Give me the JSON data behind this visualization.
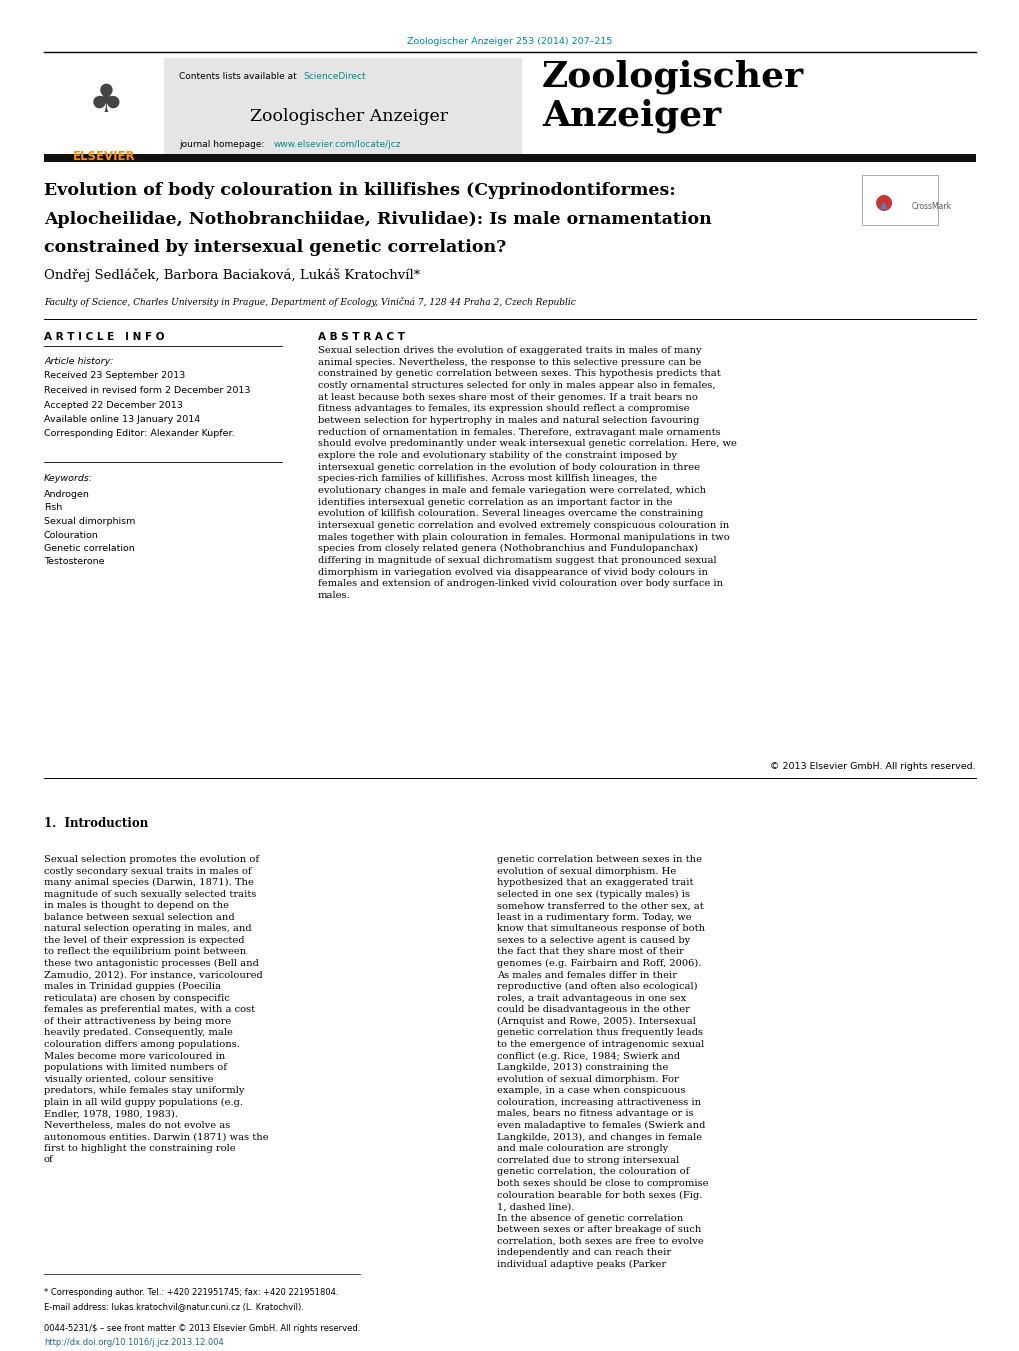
{
  "page_width": 10.2,
  "page_height": 13.51,
  "background_color": "#ffffff",
  "journal_ref_color": "#008B8B",
  "journal_ref": "Zoologischer Anzeiger 253 (2014) 207–215",
  "header_bg": "#E5E5E5",
  "header_journal_name": "Zoologischer Anzeiger",
  "header_journal_large": "Zoologischer\nAnzeiger",
  "header_contents_pre": "Contents lists available at ",
  "header_sciencedirect": "ScienceDirect",
  "header_homepage_pre": "journal homepage: ",
  "header_homepage_url": "www.elsevier.com/locate/jcz",
  "elsevier_color": "#FF8C00",
  "teal_color": "#008B8B",
  "dark_bar_color": "#111111",
  "article_title_line1": "Evolution of body colouration in killifishes (Cyprinodontiformes:",
  "article_title_line2": "Aplocheilidae, Nothobranchiidae, Rivulidae): Is male ornamentation",
  "article_title_line3": "constrained by intersexual genetic correlation?",
  "authors": "Ondřej Sedláček, Barbora Baciaková, Lukáš Kratochvíl*",
  "affiliation": "Faculty of Science, Charles University in Prague, Department of Ecology, Viničná 7, 128 44 Praha 2, Czech Republic",
  "article_history_label": "Article history:",
  "history_lines": [
    "Received 23 September 2013",
    "Received in revised form 2 December 2013",
    "Accepted 22 December 2013",
    "Available online 13 January 2014",
    "Corresponding Editor: Alexander Kupfer."
  ],
  "keywords_label": "Keywords:",
  "keywords": [
    "Androgen",
    "Fish",
    "Sexual dimorphism",
    "Colouration",
    "Genetic correlation",
    "Testosterone"
  ],
  "abstract_text": "Sexual selection drives the evolution of exaggerated traits in males of many animal species. Nevertheless, the response to this selective pressure can be constrained by genetic correlation between sexes. This hypothesis predicts that costly ornamental structures selected for only in males appear also in females, at least because both sexes share most of their genomes. If a trait bears no fitness advantages to females, its expression should reflect a compromise between selection for hypertrophy in males and natural selection favouring reduction of ornamentation in females. Therefore, extravagant male ornaments should evolve predominantly under weak intersexual genetic correlation. Here, we explore the role and evolutionary stability of the constraint imposed by intersexual genetic correlation in the evolution of body colouration in three species-rich families of killifishes. Across most killfish lineages, the evolutionary changes in male and female variegation were correlated, which identifies intersexual genetic correlation as an important factor in the evolution of killfish colouration. Several lineages overcame the constraining intersexual genetic correlation and evolved extremely conspicuous colouration in males together with plain colouration in females. Hormonal manipulations in two species from closely related genera (Nothobranchius and Fundulopanchax) differing in magnitude of sexual dichromatism suggest that pronounced sexual dimorphism in variegation evolved via disappearance of vivid body colours in females and extension of androgen-linked vivid colouration over body surface in males.",
  "copyright": "© 2013 Elsevier GmbH. All rights reserved.",
  "section1_title": "1.  Introduction",
  "intro_left": "Sexual selection promotes the evolution of costly secondary sexual traits in males of many animal species (Darwin, 1871). The magnitude of such sexually selected traits in males is thought to depend on the balance between sexual selection and natural selection operating in males, and the level of their expression is expected to reflect the equilibrium point between these two antagonistic processes (Bell and Zamudio, 2012). For instance, varicoloured males in Trinidad guppies (Poecilia reticulata) are chosen by conspecific females as preferential mates, with a cost of their attractiveness by being more heavily predated. Consequently, male colouration differs among populations. Males become more varicoloured in populations with limited numbers of visually oriented, colour sensitive predators, while females stay uniformly plain in all wild guppy populations (e.g. Endler, 1978, 1980, 1983).\n   Nevertheless, males do not evolve as autonomous entities. Darwin (1871) was the first to highlight the constraining role of",
  "intro_right": "genetic correlation between sexes in the evolution of sexual dimorphism. He hypothesized that an exaggerated trait selected in one sex (typically males) is somehow transferred to the other sex, at least in a rudimentary form. Today, we know that simultaneous response of both sexes to a selective agent is caused by the fact that they share most of their genomes (e.g. Fairbairn and Roff, 2006). As males and females differ in their reproductive (and often also ecological) roles, a trait advantageous in one sex could be disadvantageous in the other (Arnquist and Rowe, 2005). Intersexual genetic correlation thus frequently leads to the emergence of intragenomic sexual conflict (e.g. Rice, 1984; Swierk and Langkilde, 2013) constraining the evolution of sexual dimorphism. For example, in a case when conspicuous colouration, increasing attractiveness in males, bears no fitness advantage or is even maladaptive to females (Swierk and Langkilde, 2013), and changes in female and male colouration are strongly correlated due to strong intersexual genetic correlation, the colouration of both sexes should be close to compromise colouration bearable for both sexes (Fig. 1, dashed line).\n   In the absence of genetic correlation between sexes or after breakage of such correlation, both sexes are free to evolve independently and can reach their individual adaptive peaks (Parker",
  "footer_star": "* Corresponding author. Tel.: +420 221951745; fax: +420 221951804.",
  "footer_email": "E-mail address: lukas.kratochvil@natur.cuni.cz (L. Kratochvíl).",
  "footer_issn": "0044-5231/$ – see front matter © 2013 Elsevier GmbH. All rights reserved.",
  "footer_doi": "http://dx.doi.org/10.1016/j.jcz.2013.12.004",
  "link_color": "#1a6699",
  "text_color": "#000000"
}
